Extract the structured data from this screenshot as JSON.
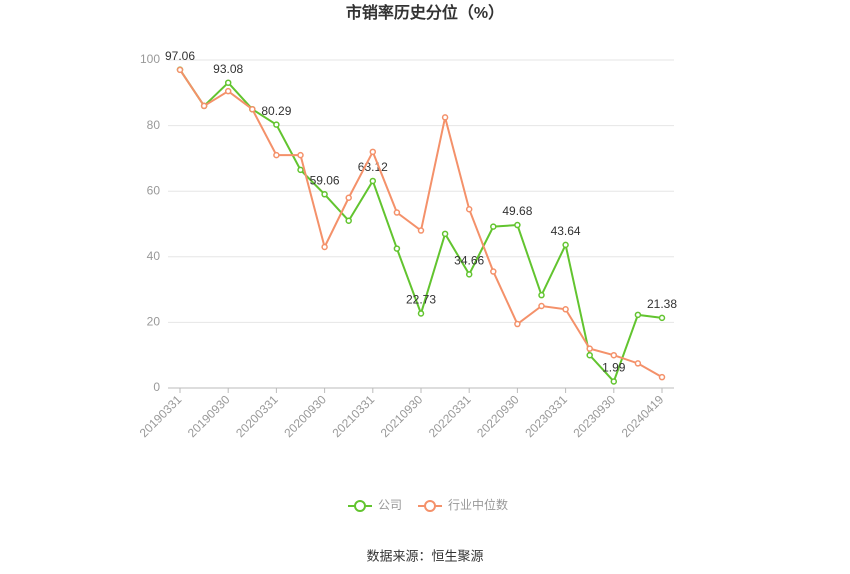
{
  "chart_data": {
    "type": "line",
    "title": "市销率历史分位（%）",
    "categories": [
      "20190331",
      null,
      "20190930",
      null,
      "20200331",
      null,
      "20200930",
      null,
      "20210331",
      null,
      "20210930",
      null,
      "20220331",
      null,
      "20220930",
      null,
      "20230331",
      null,
      "20230930",
      null,
      "20240419"
    ],
    "series": [
      {
        "name": "公司",
        "color": "#62c42f",
        "values": [
          97.06,
          86,
          93.08,
          85,
          80.29,
          66.5,
          59.06,
          51,
          63.12,
          42.5,
          22.73,
          47,
          34.66,
          49.2,
          49.68,
          28.3,
          43.64,
          10,
          1.99,
          22.3,
          21.38
        ],
        "value_labels": [
          "97.06",
          null,
          "93.08",
          null,
          "80.29",
          null,
          "59.06",
          null,
          "63.12",
          null,
          "22.73",
          null,
          "34.66",
          null,
          "49.68",
          null,
          "43.64",
          null,
          "1.99",
          null,
          "21.38"
        ]
      },
      {
        "name": "行业中位数",
        "color": "#f4916a",
        "values": [
          97,
          86,
          90.5,
          85,
          71,
          71,
          43,
          58,
          72,
          53.5,
          48,
          82.5,
          54.5,
          35.5,
          19.5,
          25,
          24,
          12,
          10,
          7.5,
          3.3
        ]
      }
    ],
    "ylim": [
      0,
      100
    ],
    "yticks": [
      0,
      20,
      40,
      60,
      80,
      100
    ],
    "grid": true,
    "legend": "bottom",
    "source": "数据来源：恒生聚源"
  }
}
